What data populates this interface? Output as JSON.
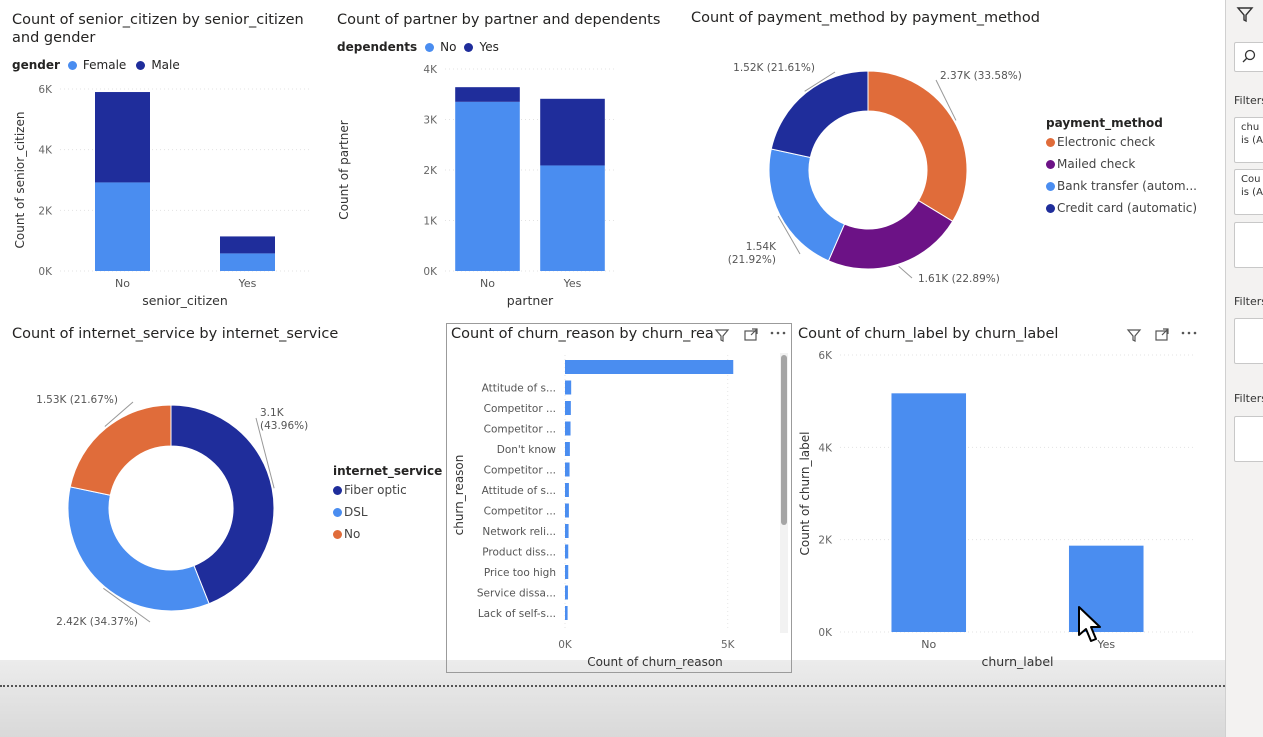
{
  "charts": [
    {
      "type": "bar",
      "stacked": true,
      "title": "Count of senior_citizen by senior_citizen and gender",
      "title_line1": "Count of senior_citizen by senior_citizen",
      "title_line2": "and gender",
      "legend_title": "gender",
      "categories": [
        "No",
        "Yes"
      ],
      "series": [
        {
          "name": "Female",
          "values": [
            2920,
            580
          ],
          "color": "#4a8df0"
        },
        {
          "name": "Male",
          "values": [
            2980,
            560
          ],
          "color": "#1f2d9b"
        }
      ],
      "xlabel": "senior_citizen",
      "ylabel": "Count of senior_citizen",
      "yticks": [
        "0K",
        "2K",
        "4K",
        "6K"
      ],
      "ylim": [
        0,
        6000
      ]
    },
    {
      "type": "bar",
      "stacked": true,
      "title": "Count of partner by partner and dependents",
      "legend_title": "dependents",
      "categories": [
        "No",
        "Yes"
      ],
      "series": [
        {
          "name": "No",
          "values": [
            3350,
            2090
          ],
          "color": "#4a8df0"
        },
        {
          "name": "Yes",
          "values": [
            290,
            1320
          ],
          "color": "#1f2d9b"
        }
      ],
      "xlabel": "partner",
      "ylabel": "Count of partner",
      "yticks": [
        "0K",
        "1K",
        "2K",
        "3K",
        "4K"
      ],
      "ylim": [
        0,
        4000
      ]
    },
    {
      "type": "pie",
      "donut": true,
      "title": "Count of payment_method by payment_method",
      "legend_title": "payment_method",
      "slices": [
        {
          "name": "Electronic check",
          "value": 2370,
          "label": "2.37K (33.58%)",
          "color": "#e06c3a"
        },
        {
          "name": "Mailed check",
          "value": 1610,
          "label": "1.61K (22.89%)",
          "color": "#6c1286"
        },
        {
          "name": "Bank transfer (autom...",
          "value": 1540,
          "label": "1.54K (21.92%)",
          "color": "#4a8df0"
        },
        {
          "name": "Credit card (automatic)",
          "value": 1520,
          "label": "1.52K (21.61%)",
          "color": "#1f2d9b"
        }
      ]
    },
    {
      "type": "pie",
      "donut": true,
      "title": "Count of internet_service by internet_service",
      "legend_title": "internet_service",
      "slices": [
        {
          "name": "Fiber optic",
          "value": 3100,
          "label": "3.1K (43.96%)",
          "color": "#1f2d9b"
        },
        {
          "name": "DSL",
          "value": 2420,
          "label": "2.42K (34.37%)",
          "color": "#4a8df0"
        },
        {
          "name": "No",
          "value": 1530,
          "label": "1.53K (21.67%)",
          "color": "#e06c3a"
        }
      ]
    },
    {
      "type": "bar",
      "orientation": "horizontal",
      "title": "Count of churn_reason by churn_rea",
      "categories": [
        "",
        "Attitude of s...",
        "Competitor ...",
        "Competitor ...",
        "Don't know",
        "Competitor ...",
        "Attitude of s...",
        "Competitor ...",
        "Network reli...",
        "Product diss...",
        "Price too high",
        "Service dissa...",
        "Lack of self-s..."
      ],
      "values": [
        5170,
        190,
        180,
        170,
        150,
        140,
        120,
        120,
        110,
        100,
        100,
        90,
        80
      ],
      "color": "#4a8df0",
      "xlabel": "Count of churn_reason",
      "ylabel": "churn_reason",
      "xticks": [
        "0K",
        "5K"
      ],
      "xlim": [
        0,
        5500
      ]
    },
    {
      "type": "bar",
      "title": "Count of churn_label by churn_label",
      "categories": [
        "No",
        "Yes"
      ],
      "values": [
        5170,
        1870
      ],
      "color": "#4a8df0",
      "xlabel": "churn_label",
      "ylabel": "Count of churn_label",
      "yticks": [
        "0K",
        "2K",
        "4K",
        "6K"
      ],
      "ylim": [
        0,
        6000
      ]
    }
  ],
  "filters_panel": {
    "header_icon": "filter-icon",
    "search_icon": "search-icon",
    "section1": "Filters",
    "card1_line1": "chu",
    "card1_line2": "is (A",
    "card2_line1": "Cou",
    "card2_line2": "is (A",
    "section2": "Filters",
    "section3": "Filters"
  },
  "visual_header_icons": {
    "filter": "filter-icon",
    "focus": "focus-mode-icon",
    "more": "more-options-icon"
  }
}
